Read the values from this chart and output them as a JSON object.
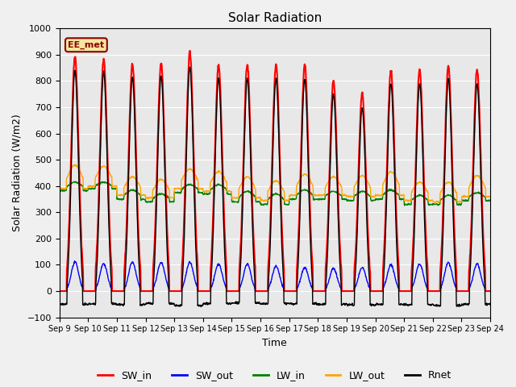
{
  "title": "Solar Radiation",
  "xlabel": "Time",
  "ylabel": "Solar Radiation (W/m2)",
  "annotation": "EE_met",
  "ylim": [
    -100,
    1000
  ],
  "total_days": 15,
  "tick_labels": [
    "Sep 9",
    "Sep 10",
    "Sep 11",
    "Sep 12",
    "Sep 13",
    "Sep 14",
    "Sep 15",
    "Sep 16",
    "Sep 17",
    "Sep 18",
    "Sep 19",
    "Sep 20",
    "Sep 21",
    "Sep 22",
    "Sep 23",
    "Sep 24"
  ],
  "tick_positions": [
    0,
    1,
    2,
    3,
    4,
    5,
    6,
    7,
    8,
    9,
    10,
    11,
    12,
    13,
    14,
    15
  ],
  "legend_entries": [
    "SW_in",
    "SW_out",
    "LW_in",
    "LW_out",
    "Rnet"
  ],
  "line_colors": [
    "red",
    "blue",
    "green",
    "orange",
    "black"
  ],
  "bg_color": "#e8e8e8",
  "fig_color": "#f0f0f0",
  "SW_in_peaks": [
    893,
    883,
    865,
    870,
    909,
    863,
    862,
    862,
    860,
    800,
    750,
    840,
    843,
    857,
    843
  ],
  "SW_out_peaks": [
    110,
    105,
    110,
    110,
    110,
    103,
    103,
    95,
    90,
    87,
    90,
    100,
    103,
    108,
    103
  ],
  "LW_in_base": [
    383,
    390,
    350,
    340,
    375,
    370,
    340,
    330,
    350,
    350,
    345,
    350,
    330,
    330,
    345
  ],
  "LW_in_peak": [
    415,
    415,
    385,
    370,
    405,
    405,
    380,
    370,
    385,
    380,
    380,
    385,
    365,
    365,
    375
  ],
  "LW_out_base": [
    390,
    400,
    365,
    355,
    390,
    380,
    355,
    345,
    365,
    365,
    360,
    365,
    345,
    340,
    360
  ],
  "LW_out_peak": [
    480,
    475,
    435,
    425,
    465,
    455,
    435,
    420,
    445,
    435,
    440,
    455,
    415,
    415,
    440
  ],
  "Rnet_night": [
    -50,
    -48,
    -52,
    -48,
    -55,
    -48,
    -45,
    -47,
    -48,
    -50,
    -52,
    -50,
    -52,
    -55,
    -50
  ],
  "Rnet_peak": [
    840,
    835,
    815,
    820,
    855,
    810,
    810,
    810,
    808,
    750,
    698,
    790,
    790,
    808,
    790
  ]
}
